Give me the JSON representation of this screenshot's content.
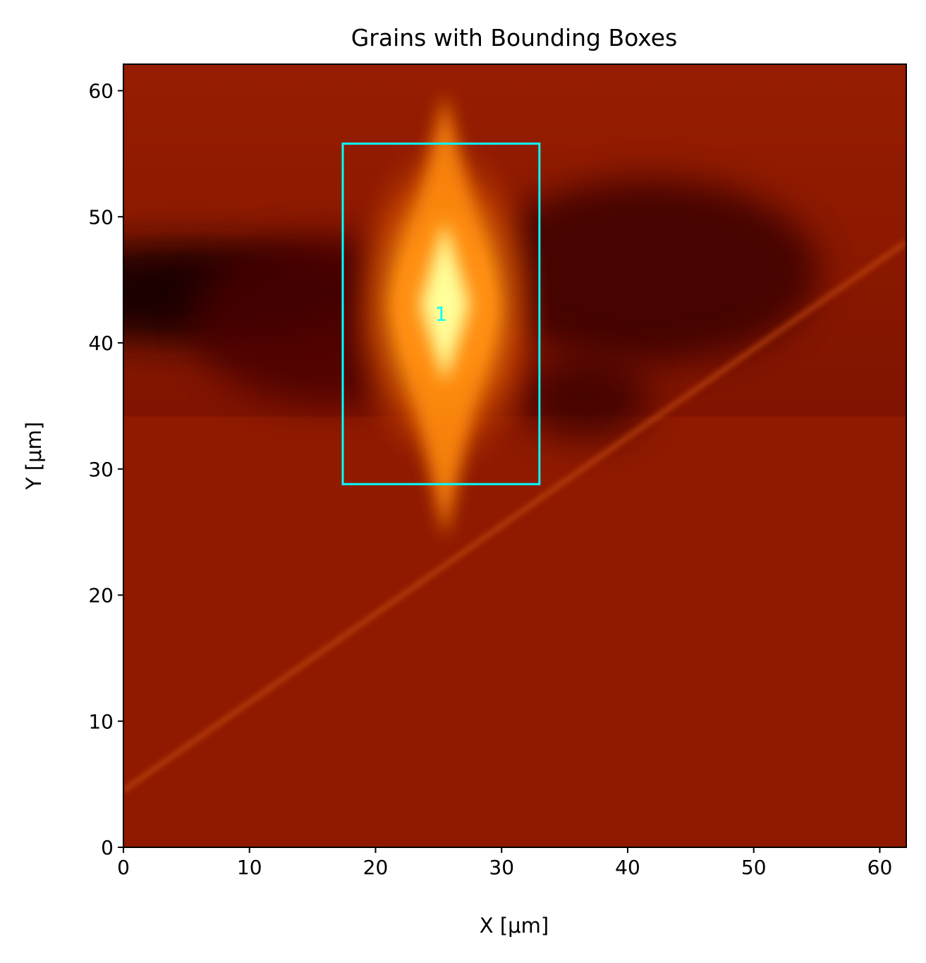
{
  "chart_data": {
    "type": "heatmap",
    "title": "Grains with Bounding Boxes",
    "xlabel": "X [μm]",
    "ylabel": "Y [μm]",
    "xlim": [
      0,
      62.1
    ],
    "ylim": [
      0,
      62.1
    ],
    "xticks": [
      0,
      10,
      20,
      30,
      40,
      50,
      60
    ],
    "yticks": [
      0,
      10,
      20,
      30,
      40,
      50,
      60
    ],
    "colormap": "afmhot",
    "background_color": "#8f1a00",
    "features": {
      "bright_peak": {
        "x": 25.5,
        "y": 43.0
      },
      "dark_band_y": 44.0,
      "scratch_line": [
        {
          "x": 0,
          "y": 4.5
        },
        {
          "x": 62.1,
          "y": 48
        }
      ]
    },
    "bounding_boxes": [
      {
        "label": "1",
        "x_min": 17.4,
        "x_max": 33.0,
        "y_min": 28.8,
        "y_max": 55.8,
        "label_x": 25.2,
        "label_y": 42.2,
        "color": "#00ffff"
      }
    ],
    "grid": false
  }
}
